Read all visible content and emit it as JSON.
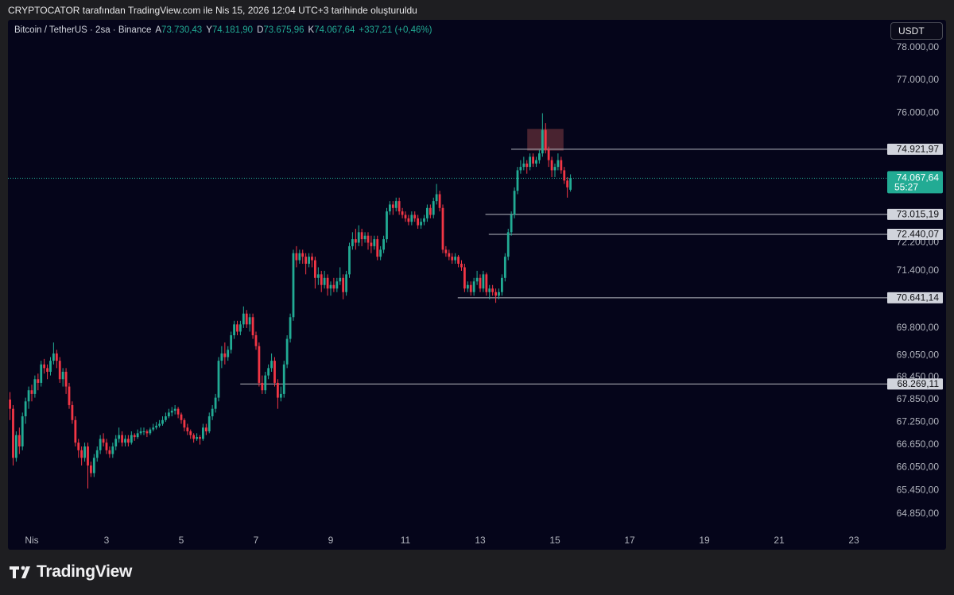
{
  "page_title": "CRYPTOCATOR tarafından TradingView.com ile Nis 15, 2026 12:04 UTC+3 tarihinde oluşturuldu",
  "brand": "TradingView",
  "currency_button": "USDT",
  "chart_data": {
    "type": "candlestick",
    "symbol": "Bitcoin / TetherUS · 2sa · Binance",
    "header": [
      {
        "key": "A",
        "value": "73.730,43"
      },
      {
        "key": "Y",
        "value": "74.181,90"
      },
      {
        "key": "D",
        "value": "73.675,96"
      },
      {
        "key": "K",
        "value": "74.067,64"
      }
    ],
    "change": "+337,21 (+0,46%)",
    "up_color": "#22ab94",
    "down_color": "#f23645",
    "log_y": true,
    "grid": false,
    "xlim": [
      0.362,
      23.766
    ],
    "ylim": [
      63930,
      78864
    ],
    "xticks": [
      {
        "value": 1,
        "label": "Nis"
      },
      3,
      5,
      7,
      9,
      11,
      13,
      15,
      17,
      19,
      21,
      23
    ],
    "yticks": [
      {
        "value": 78000,
        "label": "78.000,00"
      },
      {
        "value": 77000,
        "label": "77.000,00"
      },
      {
        "value": 76000,
        "label": "76.000,00"
      },
      {
        "value": 72200,
        "label": "72.200,00"
      },
      {
        "value": 71400,
        "label": "71.400,00"
      },
      {
        "value": 69800,
        "label": "69.800,00"
      },
      {
        "value": 69050,
        "label": "69.050,00"
      },
      {
        "value": 68450,
        "label": "68.450,00"
      },
      {
        "value": 67850,
        "label": "67.850,00"
      },
      {
        "value": 67250,
        "label": "67.250,00"
      },
      {
        "value": 66650,
        "label": "66.650,00"
      },
      {
        "value": 66050,
        "label": "66.050,00"
      },
      {
        "value": 65450,
        "label": "65.450,00"
      },
      {
        "value": 64850,
        "label": "64.850,00"
      }
    ],
    "x": [
      0.417,
      0.5,
      0.583,
      0.667,
      0.75,
      0.833,
      0.917,
      1,
      1.083,
      1.167,
      1.25,
      1.333,
      1.417,
      1.5,
      1.583,
      1.667,
      1.75,
      1.833,
      1.917,
      2,
      2.083,
      2.167,
      2.25,
      2.333,
      2.417,
      2.5,
      2.583,
      2.667,
      2.75,
      2.833,
      2.917,
      3,
      3.083,
      3.167,
      3.25,
      3.333,
      3.417,
      3.5,
      3.583,
      3.667,
      3.75,
      3.833,
      3.917,
      4,
      4.083,
      4.167,
      4.25,
      4.333,
      4.417,
      4.5,
      4.583,
      4.667,
      4.75,
      4.833,
      4.917,
      5,
      5.083,
      5.167,
      5.25,
      5.333,
      5.417,
      5.5,
      5.583,
      5.667,
      5.75,
      5.833,
      5.917,
      6,
      6.083,
      6.167,
      6.25,
      6.333,
      6.417,
      6.5,
      6.583,
      6.667,
      6.75,
      6.833,
      6.917,
      7,
      7.083,
      7.167,
      7.25,
      7.333,
      7.417,
      7.5,
      7.583,
      7.667,
      7.75,
      7.833,
      7.917,
      8,
      8.083,
      8.167,
      8.25,
      8.333,
      8.417,
      8.5,
      8.583,
      8.667,
      8.75,
      8.833,
      8.917,
      9,
      9.083,
      9.167,
      9.25,
      9.333,
      9.417,
      9.5,
      9.583,
      9.667,
      9.75,
      9.833,
      9.917,
      10,
      10.083,
      10.167,
      10.25,
      10.333,
      10.417,
      10.5,
      10.583,
      10.667,
      10.75,
      10.833,
      10.917,
      11,
      11.083,
      11.167,
      11.25,
      11.333,
      11.417,
      11.5,
      11.583,
      11.667,
      11.75,
      11.833,
      11.917,
      12,
      12.083,
      12.167,
      12.25,
      12.333,
      12.417,
      12.5,
      12.583,
      12.667,
      12.75,
      12.833,
      12.917,
      13,
      13.083,
      13.167,
      13.25,
      13.333,
      13.417,
      13.5,
      13.583,
      13.667,
      13.75,
      13.833,
      13.917,
      14,
      14.083,
      14.167,
      14.25,
      14.333,
      14.417,
      14.5,
      14.583,
      14.667,
      14.75,
      14.833,
      14.917,
      15,
      15.083,
      15.167,
      15.25,
      15.333,
      15.417
    ],
    "candles": [
      [
        67850,
        68050,
        67300,
        67600
      ],
      [
        67600,
        67700,
        66100,
        66300
      ],
      [
        66300,
        67000,
        66200,
        66900
      ],
      [
        66900,
        67100,
        66400,
        66600
      ],
      [
        66600,
        67500,
        66500,
        67400
      ],
      [
        67400,
        67900,
        67200,
        67800
      ],
      [
        67800,
        68200,
        67600,
        68100
      ],
      [
        68100,
        68250,
        67800,
        68000
      ],
      [
        68000,
        68500,
        67900,
        68400
      ],
      [
        68400,
        68550,
        68100,
        68300
      ],
      [
        68300,
        68900,
        68200,
        68800
      ],
      [
        68800,
        68950,
        68550,
        68700
      ],
      [
        68700,
        68800,
        68400,
        68600
      ],
      [
        68600,
        69000,
        68500,
        68900
      ],
      [
        68900,
        69400,
        68800,
        69100
      ],
      [
        69100,
        69200,
        68700,
        68900
      ],
      [
        68900,
        69000,
        68300,
        68400
      ],
      [
        68400,
        68700,
        68200,
        68600
      ],
      [
        68600,
        68700,
        68000,
        68200
      ],
      [
        68200,
        68300,
        67600,
        67700
      ],
      [
        67700,
        67800,
        67200,
        67300
      ],
      [
        67300,
        67400,
        66600,
        66700
      ],
      [
        66700,
        66800,
        66300,
        66500
      ],
      [
        66500,
        66600,
        66100,
        66300
      ],
      [
        66300,
        66700,
        66200,
        66600
      ],
      [
        66600,
        66700,
        65500,
        66100
      ],
      [
        66100,
        66200,
        65800,
        65900
      ],
      [
        65900,
        66400,
        65800,
        66300
      ],
      [
        66300,
        66600,
        66200,
        66500
      ],
      [
        66500,
        66900,
        66400,
        66800
      ],
      [
        66800,
        66950,
        66600,
        66700
      ],
      [
        66700,
        66800,
        66400,
        66500
      ],
      [
        66500,
        66600,
        66300,
        66400
      ],
      [
        66400,
        66700,
        66300,
        66600
      ],
      [
        66600,
        66900,
        66500,
        66800
      ],
      [
        66800,
        67100,
        66700,
        66900
      ],
      [
        66900,
        67000,
        66600,
        66700
      ],
      [
        66700,
        66900,
        66600,
        66800
      ],
      [
        66800,
        66900,
        66600,
        66700
      ],
      [
        66700,
        67000,
        66650,
        66900
      ],
      [
        66900,
        66950,
        66750,
        66850
      ],
      [
        66850,
        67050,
        66800,
        66950
      ],
      [
        66950,
        67100,
        66900,
        67000
      ],
      [
        67000,
        67100,
        66900,
        67000
      ],
      [
        67000,
        67050,
        66850,
        66950
      ],
      [
        66950,
        67100,
        66900,
        67050
      ],
      [
        67050,
        67200,
        67000,
        67100
      ],
      [
        67100,
        67250,
        67050,
        67150
      ],
      [
        67150,
        67300,
        67100,
        67200
      ],
      [
        67200,
        67400,
        67150,
        67300
      ],
      [
        67300,
        67500,
        67250,
        67400
      ],
      [
        67400,
        67600,
        67350,
        67500
      ],
      [
        67500,
        67650,
        67400,
        67550
      ],
      [
        67550,
        67700,
        67450,
        67600
      ],
      [
        67600,
        67650,
        67350,
        67450
      ],
      [
        67450,
        67500,
        67200,
        67300
      ],
      [
        67300,
        67350,
        67000,
        67100
      ],
      [
        67100,
        67200,
        66900,
        67000
      ],
      [
        67000,
        67050,
        66800,
        66900
      ],
      [
        66900,
        66950,
        66700,
        66800
      ],
      [
        66800,
        66950,
        66750,
        66850
      ],
      [
        66850,
        66900,
        66650,
        66800
      ],
      [
        66800,
        67200,
        66750,
        67100
      ],
      [
        67100,
        67200,
        66900,
        67000
      ],
      [
        67000,
        67500,
        66950,
        67400
      ],
      [
        67400,
        67700,
        67300,
        67600
      ],
      [
        67600,
        68000,
        67500,
        67900
      ],
      [
        67900,
        69000,
        67800,
        68900
      ],
      [
        68900,
        69300,
        68700,
        69100
      ],
      [
        69100,
        69400,
        68800,
        69000
      ],
      [
        69000,
        69300,
        68900,
        69200
      ],
      [
        69200,
        69700,
        69100,
        69600
      ],
      [
        69600,
        70000,
        69500,
        69900
      ],
      [
        69900,
        70000,
        69600,
        69700
      ],
      [
        69700,
        70000,
        69600,
        69900
      ],
      [
        69900,
        70400,
        69800,
        70200
      ],
      [
        70200,
        70300,
        69800,
        69900
      ],
      [
        69900,
        70200,
        69700,
        70100
      ],
      [
        70100,
        70200,
        69500,
        69600
      ],
      [
        69600,
        69700,
        69200,
        69300
      ],
      [
        69300,
        69400,
        68200,
        68300
      ],
      [
        68300,
        68500,
        68000,
        68100
      ],
      [
        68100,
        68600,
        68000,
        68500
      ],
      [
        68500,
        68800,
        68400,
        68700
      ],
      [
        68700,
        69100,
        68600,
        68900
      ],
      [
        68900,
        69000,
        68200,
        68300
      ],
      [
        68300,
        68400,
        67600,
        67900
      ],
      [
        67900,
        68200,
        67800,
        68000
      ],
      [
        68000,
        68900,
        67900,
        68800
      ],
      [
        68800,
        69600,
        68700,
        69500
      ],
      [
        69500,
        70200,
        69400,
        70100
      ],
      [
        70100,
        72000,
        70000,
        71900
      ],
      [
        71900,
        72100,
        71500,
        71700
      ],
      [
        71700,
        72000,
        71600,
        71900
      ],
      [
        71900,
        72000,
        71600,
        71800
      ],
      [
        71800,
        71900,
        71300,
        71600
      ],
      [
        71600,
        71900,
        71500,
        71800
      ],
      [
        71800,
        71900,
        71500,
        71700
      ],
      [
        71700,
        71800,
        70900,
        71200
      ],
      [
        71200,
        71500,
        71000,
        71300
      ],
      [
        71300,
        71400,
        70800,
        71000
      ],
      [
        71000,
        71400,
        70900,
        71200
      ],
      [
        71200,
        71300,
        70700,
        70900
      ],
      [
        70900,
        71100,
        70700,
        71000
      ],
      [
        71000,
        71200,
        70800,
        70900
      ],
      [
        70900,
        71200,
        70800,
        71100
      ],
      [
        71100,
        71500,
        71000,
        71200
      ],
      [
        71200,
        71300,
        70600,
        70800
      ],
      [
        70800,
        71400,
        70700,
        71300
      ],
      [
        71300,
        72200,
        71200,
        72100
      ],
      [
        72100,
        72500,
        72000,
        72300
      ],
      [
        72300,
        72600,
        72000,
        72200
      ],
      [
        72200,
        72700,
        72100,
        72500
      ],
      [
        72500,
        72600,
        72100,
        72300
      ],
      [
        72300,
        72500,
        72200,
        72400
      ],
      [
        72400,
        72500,
        72000,
        72200
      ],
      [
        72200,
        72400,
        71900,
        72100
      ],
      [
        72100,
        72400,
        72000,
        72300
      ],
      [
        72300,
        72400,
        71700,
        71800
      ],
      [
        71800,
        72100,
        71700,
        72000
      ],
      [
        72000,
        72400,
        71900,
        72300
      ],
      [
        72300,
        73200,
        72200,
        73100
      ],
      [
        73100,
        73400,
        73000,
        73300
      ],
      [
        73300,
        73400,
        73000,
        73200
      ],
      [
        73200,
        73500,
        73100,
        73400
      ],
      [
        73400,
        73500,
        73000,
        73100
      ],
      [
        73100,
        73200,
        72900,
        73000
      ],
      [
        73000,
        73100,
        72800,
        72900
      ],
      [
        72900,
        73000,
        72700,
        72800
      ],
      [
        72800,
        73100,
        72700,
        73000
      ],
      [
        73000,
        73100,
        72800,
        72900
      ],
      [
        72900,
        73000,
        72600,
        72700
      ],
      [
        72700,
        72900,
        72600,
        72800
      ],
      [
        72800,
        73000,
        72700,
        72900
      ],
      [
        72900,
        73300,
        72800,
        73200
      ],
      [
        73200,
        73300,
        72900,
        73000
      ],
      [
        73000,
        73500,
        72900,
        73400
      ],
      [
        73400,
        73900,
        73300,
        73600
      ],
      [
        73600,
        73700,
        73100,
        73200
      ],
      [
        73200,
        73300,
        71900,
        72000
      ],
      [
        72000,
        72100,
        71800,
        71900
      ],
      [
        71900,
        72000,
        71700,
        71800
      ],
      [
        71800,
        71900,
        71600,
        71700
      ],
      [
        71700,
        71900,
        71600,
        71800
      ],
      [
        71800,
        71850,
        71500,
        71600
      ],
      [
        71600,
        71700,
        71400,
        71500
      ],
      [
        71500,
        71600,
        70800,
        70900
      ],
      [
        70900,
        71100,
        70800,
        71000
      ],
      [
        71000,
        71100,
        70700,
        70800
      ],
      [
        70800,
        71200,
        70700,
        71100
      ],
      [
        71100,
        71400,
        71000,
        71200
      ],
      [
        71200,
        71300,
        70800,
        70900
      ],
      [
        70900,
        71400,
        70800,
        71300
      ],
      [
        71300,
        71350,
        70700,
        70800
      ],
      [
        70800,
        71000,
        70600,
        70900
      ],
      [
        70900,
        71000,
        70700,
        70800
      ],
      [
        70800,
        70900,
        70500,
        70700
      ],
      [
        70700,
        70900,
        70600,
        70800
      ],
      [
        70800,
        71300,
        70700,
        71200
      ],
      [
        71200,
        71900,
        71100,
        71800
      ],
      [
        71800,
        72600,
        71700,
        72500
      ],
      [
        72500,
        73100,
        72400,
        73000
      ],
      [
        73000,
        73800,
        72900,
        73700
      ],
      [
        73700,
        74400,
        73600,
        74300
      ],
      [
        74300,
        74600,
        74200,
        74400
      ],
      [
        74400,
        74700,
        74300,
        74500
      ],
      [
        74500,
        74600,
        74200,
        74400
      ],
      [
        74400,
        74800,
        74300,
        74700
      ],
      [
        74700,
        74800,
        74400,
        74500
      ],
      [
        74500,
        74700,
        74400,
        74600
      ],
      [
        74600,
        74900,
        74500,
        74800
      ],
      [
        74800,
        76000,
        74700,
        75500
      ],
      [
        75500,
        75700,
        74800,
        74900
      ],
      [
        74900,
        75000,
        74400,
        74600
      ],
      [
        74600,
        74700,
        74100,
        74300
      ],
      [
        74300,
        74500,
        74100,
        74400
      ],
      [
        74400,
        74800,
        74300,
        74600
      ],
      [
        74600,
        74700,
        74200,
        74300
      ],
      [
        74300,
        74400,
        73900,
        74000
      ],
      [
        74000,
        74100,
        73500,
        73800
      ],
      [
        73730.43,
        74181.9,
        73675.96,
        74067.64
      ]
    ],
    "last_price": {
      "label": "74.067,64",
      "countdown": "55:27"
    },
    "levels": [
      {
        "value": 74921.97,
        "label": "74.921,97",
        "start": 13.83
      },
      {
        "value": 73015.19,
        "label": "73.015,19",
        "start": 13.14
      },
      {
        "value": 72440.07,
        "label": "72.440,07",
        "start": 13.23
      },
      {
        "value": 70641.14,
        "label": "70.641,14",
        "start": 12.4
      },
      {
        "value": 68269.11,
        "label": "68.269,11",
        "start": 6.58
      }
    ],
    "zones": [
      {
        "x": [
          14.26,
          15.23
        ],
        "y": [
          74880,
          75530
        ],
        "color": "#5a2a36"
      }
    ]
  }
}
